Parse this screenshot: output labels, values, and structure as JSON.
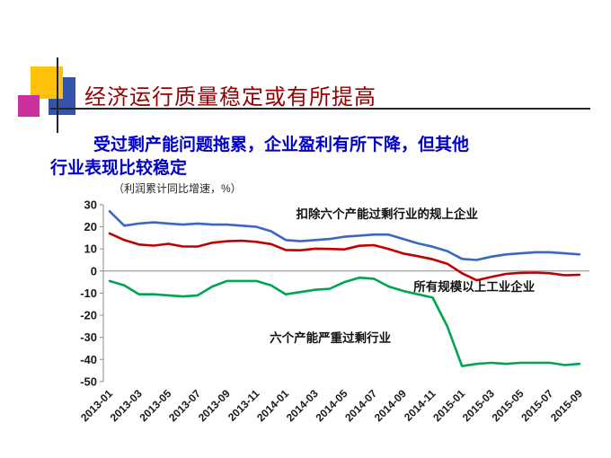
{
  "slide": {
    "title": "经济运行质量稳定或有所提高",
    "subtitle_line1": "受过剩产能问题拖累，企业盈利有所下降，但其他",
    "subtitle_line2": "行业表现比较稳定"
  },
  "chart_data": {
    "type": "line",
    "title": "",
    "axis_note": "（利润累计同比增速，%）",
    "ylim": [
      -50,
      30
    ],
    "yticks": [
      30,
      20,
      10,
      0,
      -10,
      -20,
      -30,
      -40,
      -50
    ],
    "grid": false,
    "legend_position": "inline-annotations",
    "x": [
      "2013-01",
      "2013-02",
      "2013-03",
      "2013-04",
      "2013-05",
      "2013-06",
      "2013-07",
      "2013-08",
      "2013-09",
      "2013-10",
      "2013-11",
      "2013-12",
      "2014-01",
      "2014-02",
      "2014-03",
      "2014-04",
      "2014-05",
      "2014-06",
      "2014-07",
      "2014-08",
      "2014-09",
      "2014-10",
      "2014-11",
      "2014-12",
      "2015-01",
      "2015-02",
      "2015-03",
      "2015-04",
      "2015-05",
      "2015-06",
      "2015-07",
      "2015-08",
      "2015-09"
    ],
    "x_tick_labels": [
      "2013-01",
      "2013-03",
      "2013-05",
      "2013-07",
      "2013-09",
      "2013-11",
      "2014-01",
      "2014-03",
      "2014-05",
      "2014-07",
      "2014-09",
      "2014-11",
      "2015-01",
      "2015-03",
      "2015-05",
      "2015-07",
      "2015-09"
    ],
    "series": [
      {
        "name": "扣除六个产能过剩行业的规上企业",
        "color": "#3a66c4",
        "values": [
          27,
          20.5,
          21.5,
          22,
          21.5,
          21,
          21.5,
          21,
          21,
          20.5,
          20,
          18,
          14,
          13.5,
          14,
          14.5,
          15.5,
          16,
          16.5,
          16.5,
          14.5,
          12.5,
          11,
          9,
          5.5,
          5,
          6.5,
          7.5,
          8,
          8.5,
          8.5,
          8,
          7.5
        ]
      },
      {
        "name": "所有规模以上工业企业",
        "color": "#c00000",
        "values": [
          17,
          14,
          12,
          11.5,
          12.3,
          11.1,
          11.1,
          12.8,
          13.5,
          13.7,
          13.2,
          12.2,
          9.5,
          9.4,
          10.1,
          10,
          9.8,
          11.4,
          11.7,
          10,
          7.9,
          6.7,
          5.3,
          3.3,
          -1,
          -4.2,
          -2.7,
          -1.3,
          -0.8,
          -0.7,
          -1,
          -1.9,
          -1.7
        ]
      },
      {
        "name": "六个产能严重过剩行业",
        "color": "#00a550",
        "values": [
          -4.5,
          -6.5,
          -10.5,
          -10.5,
          -11,
          -11.5,
          -11,
          -7,
          -4.5,
          -4.5,
          -4.5,
          -6.5,
          -10.5,
          -9.5,
          -8.5,
          -8,
          -5,
          -3,
          -3.5,
          -7,
          -9,
          -10.5,
          -12,
          -25,
          -43,
          -42,
          -41.5,
          -42,
          -41.5,
          -41.5,
          -41.5,
          -42.5,
          -42
        ]
      }
    ],
    "annotations": [
      {
        "text": "扣除六个产能过剩行业的规上企业",
        "month_index": 12.7,
        "value": 25.5
      },
      {
        "text": "所有规模以上工业企业",
        "month_index": 20.7,
        "value": -7.4
      },
      {
        "text": "六个产能严重过剩行业",
        "month_index": 10.9,
        "value": -30.5
      }
    ]
  }
}
